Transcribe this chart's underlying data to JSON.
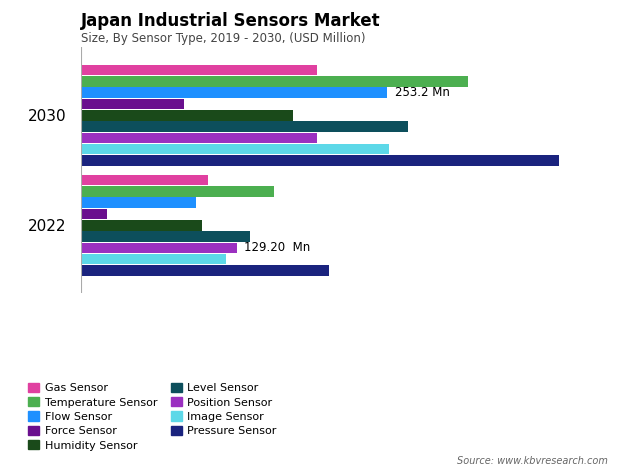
{
  "title": "Japan Industrial Sensors Market",
  "subtitle": "Size, By Sensor Type, 2019 - 2030, (USD Million)",
  "source": "Source: www.kbvresearch.com",
  "years": [
    "2030",
    "2022"
  ],
  "sensors": [
    "Gas Sensor",
    "Temperature Sensor",
    "Flow Sensor",
    "Force Sensor",
    "Humidity Sensor",
    "Level Sensor",
    "Position Sensor",
    "Image Sensor",
    "Pressure Sensor"
  ],
  "colors": [
    "#e040a0",
    "#4caf50",
    "#1e90ff",
    "#6a0f8e",
    "#1a4a1a",
    "#0d4f5c",
    "#9b30c0",
    "#5dd8e8",
    "#1a237e"
  ],
  "values_2030": [
    195,
    320,
    253.2,
    85,
    175,
    270,
    195,
    255,
    395
  ],
  "values_2022": [
    105,
    160,
    95,
    22,
    100,
    140,
    129.2,
    120,
    205
  ],
  "annotation_2030_text": "253.2 Mn",
  "annotation_2030_sensor_idx": 2,
  "annotation_2022_text": "129.20  Mn",
  "annotation_2022_sensor_idx": 6,
  "background_color": "#ffffff",
  "xlim": 430
}
